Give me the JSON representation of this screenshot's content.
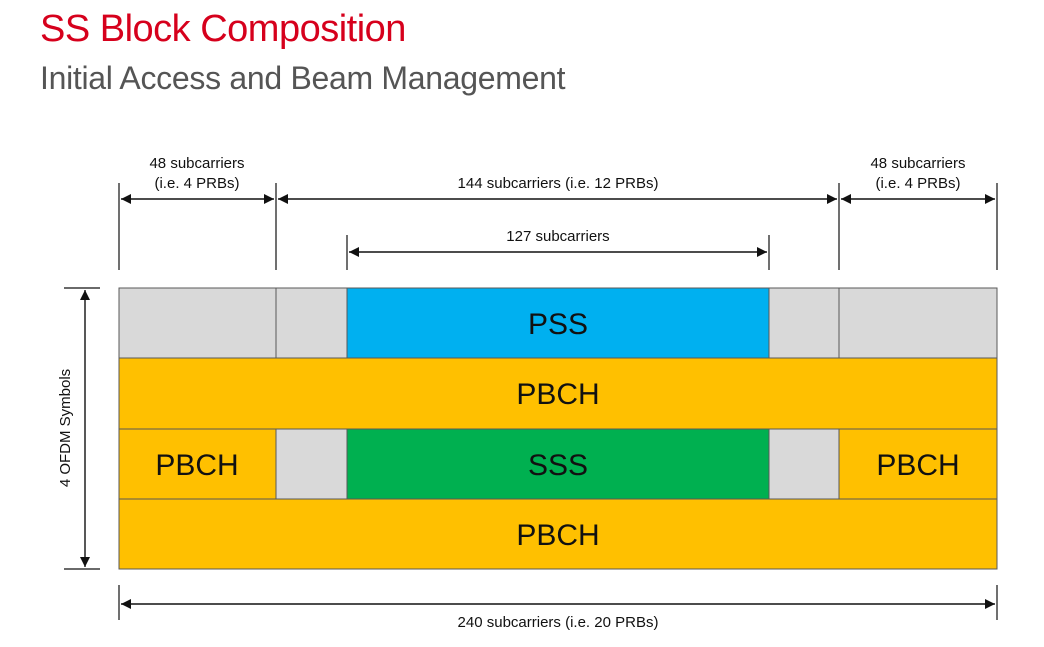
{
  "header": {
    "title": "SS Block Composition",
    "subtitle": "Initial Access and Beam Management"
  },
  "colors": {
    "title": "#d6001c",
    "subtitle": "#555555",
    "pss": "#00b0f0",
    "sss": "#00b050",
    "pbch": "#ffc000",
    "unused": "#d9d9d9",
    "outline": "#595959"
  },
  "dimensions": {
    "left_48_line1": "48 subcarriers",
    "left_48_line2": "(i.e. 4 PRBs)",
    "middle_144": "144 subcarriers (i.e. 12 PRBs)",
    "right_48_line1": "48 subcarriers",
    "right_48_line2": "(i.e. 4 PRBs)",
    "inner_127": "127 subcarriers",
    "bottom_240": "240 subcarriers (i.e. 20 PRBs)",
    "vertical_symbols": "4 OFDM Symbols"
  },
  "blocks": {
    "pss": "PSS",
    "pbch_row2": "PBCH",
    "pbch_left": "PBCH",
    "sss": "SSS",
    "pbch_right": "PBCH",
    "pbch_row4": "PBCH"
  }
}
